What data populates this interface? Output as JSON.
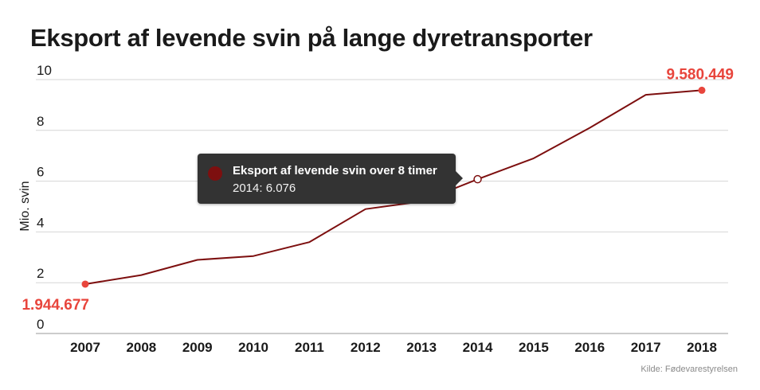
{
  "title": "Eksport af levende svin på lange dyretransporter",
  "source": "Kilde: Fødevarestyrelsen",
  "colors": {
    "line": "#7d0f0f",
    "highlight": "#e8453c",
    "grid": "#d6d6d6",
    "text": "#1a1a1a"
  },
  "tooltip": {
    "series": "Eksport af levende svin over 8 timer",
    "value": "2014: 6.076"
  },
  "chart_data": {
    "type": "line",
    "title": "Eksport af levende svin på lange dyretransporter",
    "xlabel": "",
    "ylabel": "Mio. svin",
    "ylim": [
      0,
      10
    ],
    "yticks": [
      "0",
      "2",
      "4",
      "6",
      "8",
      "10"
    ],
    "grid": true,
    "categories": [
      "2007",
      "2008",
      "2009",
      "2010",
      "2011",
      "2012",
      "2013",
      "2014",
      "2015",
      "2016",
      "2017",
      "2018"
    ],
    "series": [
      {
        "name": "Eksport af levende svin over 8 timer",
        "values": [
          1.945,
          2.3,
          2.9,
          3.05,
          3.6,
          4.9,
          5.2,
          6.076,
          6.9,
          8.1,
          9.4,
          9.58
        ]
      }
    ],
    "annotations": [
      {
        "category": "2007",
        "label": "1.944.677"
      },
      {
        "category": "2018",
        "label": "9.580.449"
      }
    ],
    "hovered_category": "2014"
  }
}
